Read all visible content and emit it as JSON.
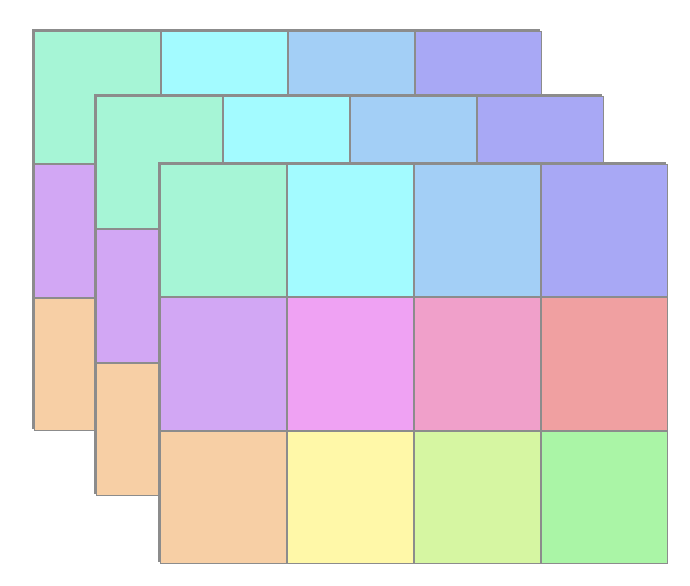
{
  "palette": {
    "grid_border": "#8c8c8c",
    "background": "#ffffff"
  },
  "layers": [
    {
      "id": "back",
      "colors": [
        "#a6f5d6",
        "#a3fbff",
        "#a3cff6",
        "#a8a8f5",
        "#d2a7f4",
        "#efa2f3",
        "#f0a0ca",
        "#f0a0a1",
        "#f7cfa5",
        "#fff8a8",
        "#d6f6a2",
        "#aaf5a6"
      ]
    },
    {
      "id": "middle",
      "colors": [
        "#a6f5d6",
        "#a3fbff",
        "#a3cff6",
        "#a8a8f5",
        "#d2a7f4",
        "#efa2f3",
        "#f0a0ca",
        "#f0a0a1",
        "#f7cfa5",
        "#fff8a8",
        "#d6f6a2",
        "#aaf5a6"
      ]
    },
    {
      "id": "front",
      "colors": [
        "#a6f5d6",
        "#a3fbff",
        "#a3cff6",
        "#a8a8f5",
        "#d2a7f4",
        "#efa2f3",
        "#f0a0ca",
        "#f0a0a1",
        "#f7cfa5",
        "#fff8a8",
        "#d6f6a2",
        "#aaf5a6"
      ]
    }
  ]
}
